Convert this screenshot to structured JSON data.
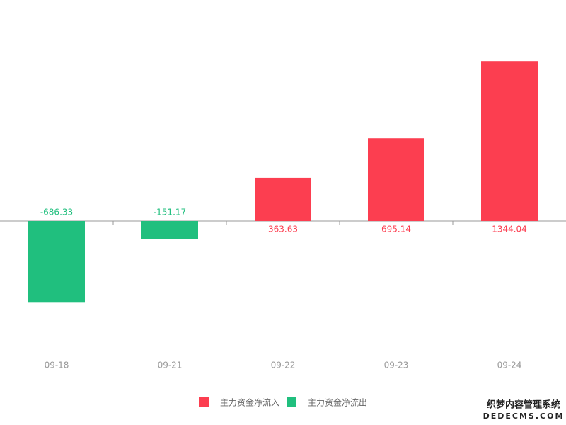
{
  "chart_data": {
    "type": "bar",
    "categories": [
      "09-18",
      "09-21",
      "09-22",
      "09-23",
      "09-24"
    ],
    "series": [
      {
        "name": "主力资金净流入",
        "color": "#fc3e50",
        "values": [
          null,
          null,
          363.63,
          695.14,
          1344.04
        ]
      },
      {
        "name": "主力资金净流出",
        "color": "#20bf7e",
        "values": [
          -686.33,
          -151.17,
          null,
          null,
          null
        ]
      }
    ],
    "ylim": [
      -1000,
      1500
    ]
  },
  "watermark": {
    "line1": "织梦内容管理系统",
    "line2": "DEDECMS.COM"
  }
}
